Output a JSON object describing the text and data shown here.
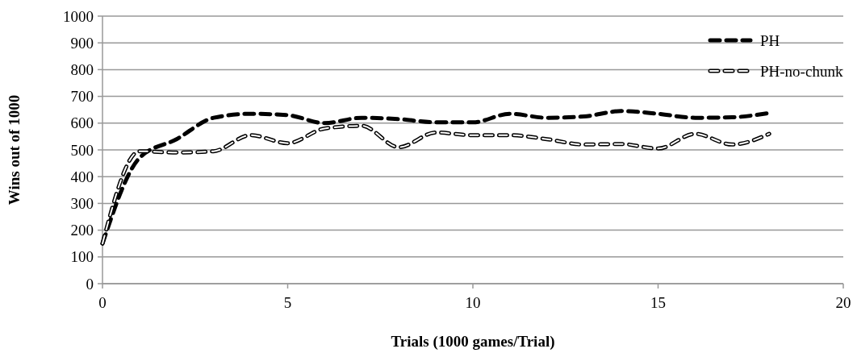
{
  "chart_data": {
    "type": "line",
    "xlabel": "Trials (1000 games/Trial)",
    "ylabel": "Wins out of 1000",
    "x": [
      0,
      1,
      2,
      3,
      4,
      5,
      6,
      7,
      8,
      9,
      10,
      11,
      12,
      13,
      14,
      15,
      16,
      17,
      18
    ],
    "series": [
      {
        "name": "PH",
        "color": "#000000",
        "line_style": "dashed",
        "values": [
          150,
          470,
          540,
          620,
          635,
          630,
          600,
          620,
          615,
          603,
          603,
          635,
          620,
          625,
          645,
          635,
          620,
          622,
          638
        ]
      },
      {
        "name": "PH-no-chunk",
        "color": "#000000",
        "line_style": "dotted",
        "values": [
          150,
          495,
          490,
          495,
          555,
          525,
          580,
          590,
          510,
          565,
          555,
          555,
          540,
          520,
          522,
          505,
          560,
          520,
          560
        ]
      }
    ],
    "xlim": [
      0,
      20
    ],
    "xticks": [
      0,
      5,
      10,
      15,
      20
    ],
    "ylim": [
      0,
      1000
    ],
    "yticks": [
      0,
      100,
      200,
      300,
      400,
      500,
      600,
      700,
      800,
      900,
      1000
    ],
    "grid": "y",
    "legend": "top right",
    "marker": "none"
  }
}
